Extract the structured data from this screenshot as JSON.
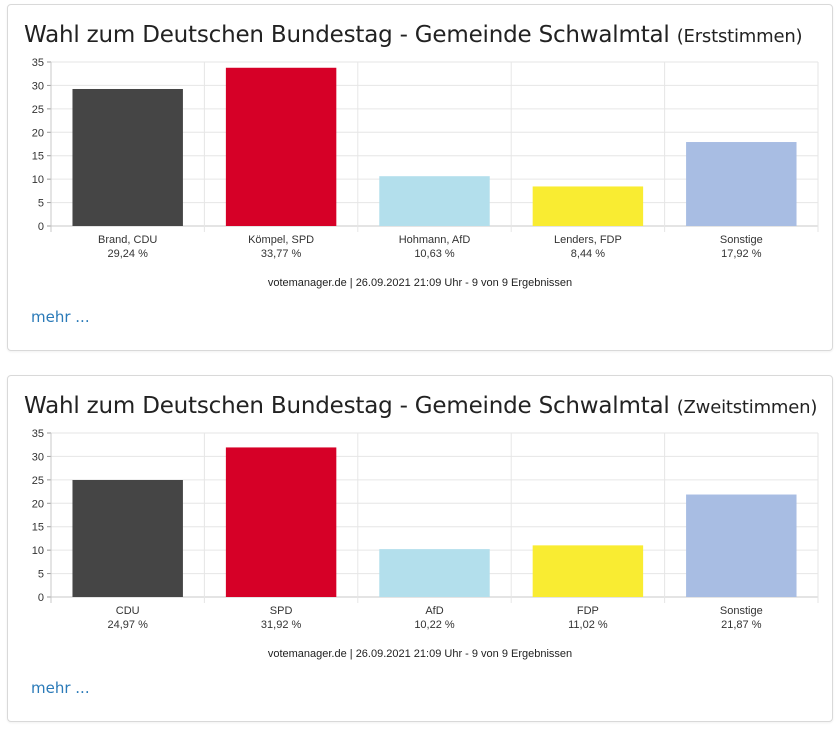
{
  "chart_data": [
    {
      "type": "bar",
      "title": "Wahl zum Deutschen Bundestag - Gemeinde Schwalmtal",
      "subtitle": "(Erststimmen)",
      "categories": [
        "Brand, CDU",
        "Kömpel, SPD",
        "Hohmann, AfD",
        "Lenders, FDP",
        "Sonstige"
      ],
      "values": [
        29.24,
        33.77,
        10.63,
        8.44,
        17.92
      ],
      "value_labels": [
        "29,24 %",
        "33,77 %",
        "10,63 %",
        "8,44 %",
        "17,92 %"
      ],
      "colors": [
        "#454545",
        "#d60027",
        "#b3dfec",
        "#f9ec32",
        "#a8bde3"
      ],
      "ylim": [
        0,
        35
      ],
      "yticks": [
        0,
        5,
        10,
        15,
        20,
        25,
        30,
        35
      ],
      "grid": true,
      "source": "votemanager.de | 26.09.2021 21:09 Uhr - 9 von 9 Ergebnissen",
      "more_label": "mehr ..."
    },
    {
      "type": "bar",
      "title": "Wahl zum Deutschen Bundestag - Gemeinde Schwalmtal",
      "subtitle": "(Zweitstimmen)",
      "categories": [
        "CDU",
        "SPD",
        "AfD",
        "FDP",
        "Sonstige"
      ],
      "values": [
        24.97,
        31.92,
        10.22,
        11.02,
        21.87
      ],
      "value_labels": [
        "24,97 %",
        "31,92 %",
        "10,22 %",
        "11,02 %",
        "21,87 %"
      ],
      "colors": [
        "#454545",
        "#d60027",
        "#b3dfec",
        "#f9ec32",
        "#a8bde3"
      ],
      "ylim": [
        0,
        35
      ],
      "yticks": [
        0,
        5,
        10,
        15,
        20,
        25,
        30,
        35
      ],
      "grid": true,
      "source": "votemanager.de | 26.09.2021 21:09 Uhr - 9 von 9 Ergebnissen",
      "more_label": "mehr ..."
    }
  ]
}
